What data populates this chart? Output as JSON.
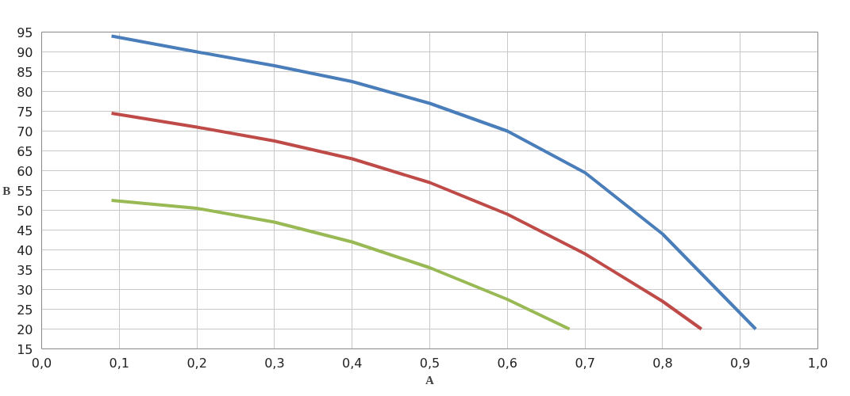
{
  "chart_data": {
    "type": "line",
    "xlabel": "A",
    "ylabel": "B",
    "xlim": [
      0,
      1
    ],
    "xticks": [
      {
        "value": 0,
        "label": "0,0"
      },
      {
        "value": 0.1,
        "label": "0,1"
      },
      {
        "value": 0.2,
        "label": "0,2"
      },
      {
        "value": 0.3,
        "label": "0,3"
      },
      {
        "value": 0.4,
        "label": "0,4"
      },
      {
        "value": 0.5,
        "label": "0,5"
      },
      {
        "value": 0.6,
        "label": "0,6"
      },
      {
        "value": 0.7,
        "label": "0,7"
      },
      {
        "value": 0.8,
        "label": "0,8"
      },
      {
        "value": 0.9,
        "label": "0,9"
      },
      {
        "value": 1,
        "label": "1,0"
      }
    ],
    "ylim": [
      15,
      95
    ],
    "yticks": [
      15,
      20,
      25,
      30,
      35,
      40,
      45,
      50,
      55,
      60,
      65,
      70,
      75,
      80,
      85,
      90,
      95
    ],
    "grid": true,
    "marker": "none",
    "line_style": "solid",
    "series": [
      {
        "color": "#4a7ebb",
        "x": [
          0.09,
          0.2,
          0.3,
          0.4,
          0.5,
          0.6,
          0.7,
          0.8,
          0.85,
          0.92
        ],
        "values": [
          94,
          90,
          86.5,
          82.5,
          77,
          70,
          59.5,
          44,
          34,
          20
        ]
      },
      {
        "color": "#be4b48",
        "x": [
          0.09,
          0.2,
          0.3,
          0.4,
          0.5,
          0.6,
          0.7,
          0.8,
          0.85
        ],
        "values": [
          74.5,
          71,
          67.5,
          63,
          57,
          49,
          39,
          27,
          20
        ]
      },
      {
        "color": "#98b954",
        "x": [
          0.09,
          0.2,
          0.3,
          0.4,
          0.5,
          0.6,
          0.68
        ],
        "values": [
          52.5,
          50.5,
          47,
          42,
          35.5,
          27.5,
          20
        ]
      }
    ]
  }
}
